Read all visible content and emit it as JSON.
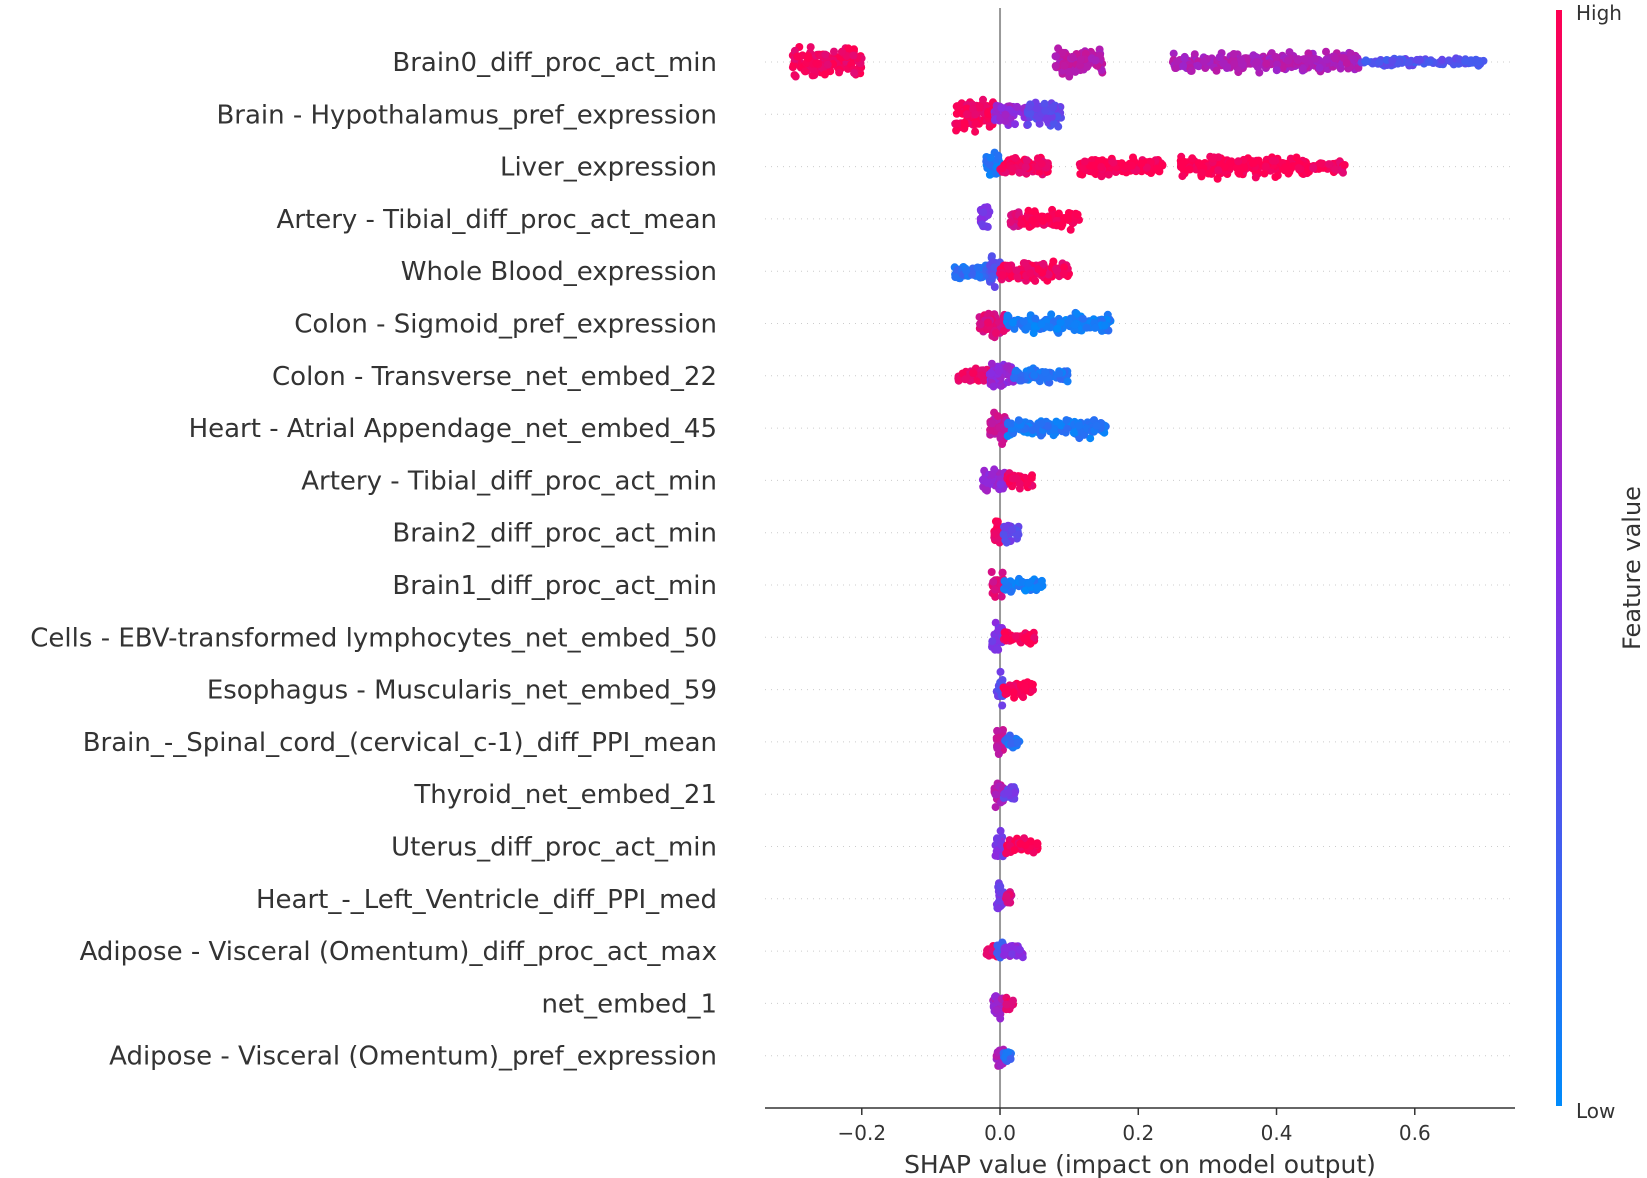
{
  "chart_data": {
    "type": "scatter",
    "subtype": "shap-beeswarm",
    "xlabel": "SHAP value (impact on model output)",
    "xlim": [
      -0.34,
      0.745
    ],
    "xticks": [
      {
        "value": -0.2,
        "label": "−0.2"
      },
      {
        "value": 0.0,
        "label": "0.0"
      },
      {
        "value": 0.2,
        "label": "0.2"
      },
      {
        "value": 0.4,
        "label": "0.4"
      },
      {
        "value": 0.6,
        "label": "0.6"
      }
    ],
    "zero_line": true,
    "colorbar": {
      "title": "Feature value",
      "high_label": "High",
      "low_label": "Low",
      "high_color": "#ff0052",
      "mid_color": "#8a2be2",
      "low_color": "#008bfb"
    },
    "features": [
      {
        "name": "Brain0_diff_proc_act_min",
        "clusters": [
          [
            -0.3,
            -0.2,
            0.95,
            1.0
          ],
          [
            0.08,
            0.15,
            0.7,
            0.8
          ],
          [
            0.25,
            0.52,
            0.65,
            0.55
          ],
          [
            0.52,
            0.7,
            0.3,
            0.12
          ]
        ]
      },
      {
        "name": "Brain - Hypothalamus_pref_expression",
        "clusters": [
          [
            -0.065,
            -0.01,
            0.95,
            1.0
          ],
          [
            -0.01,
            0.04,
            0.55,
            0.6
          ],
          [
            0.04,
            0.09,
            0.35,
            0.7
          ]
        ]
      },
      {
        "name": "Liver_expression",
        "clusters": [
          [
            -0.02,
            0.0,
            0.1,
            0.8
          ],
          [
            0.0,
            0.07,
            0.95,
            0.6
          ],
          [
            0.115,
            0.235,
            1.0,
            0.6
          ],
          [
            0.26,
            0.45,
            1.0,
            0.6
          ],
          [
            0.45,
            0.5,
            0.95,
            0.25
          ]
        ]
      },
      {
        "name": "Artery - Tibial_diff_proc_act_mean",
        "clusters": [
          [
            -0.03,
            -0.015,
            0.45,
            0.8
          ],
          [
            0.015,
            0.03,
            0.85,
            0.7
          ],
          [
            0.03,
            0.115,
            0.98,
            0.5
          ]
        ]
      },
      {
        "name": "Whole Blood_expression",
        "clusters": [
          [
            -0.068,
            -0.01,
            0.15,
            0.45
          ],
          [
            -0.015,
            0.0,
            0.3,
            0.95
          ],
          [
            0.0,
            0.1,
            0.95,
            0.55
          ]
        ]
      },
      {
        "name": "Colon - Sigmoid_pref_expression",
        "clusters": [
          [
            -0.03,
            0.01,
            0.85,
            0.95
          ],
          [
            0.01,
            0.16,
            0.08,
            0.55
          ]
        ]
      },
      {
        "name": "Colon - Transverse_net_embed_22",
        "clusters": [
          [
            -0.065,
            -0.015,
            0.9,
            0.4
          ],
          [
            -0.015,
            0.02,
            0.55,
            1.0
          ],
          [
            0.02,
            0.1,
            0.12,
            0.35
          ]
        ]
      },
      {
        "name": "Heart - Atrial Appendage_net_embed_45",
        "clusters": [
          [
            -0.015,
            0.01,
            0.75,
            1.0
          ],
          [
            0.01,
            0.155,
            0.1,
            0.5
          ]
        ]
      },
      {
        "name": "Artery - Tibial_diff_proc_act_min",
        "clusters": [
          [
            -0.025,
            0.01,
            0.55,
            0.9
          ],
          [
            0.01,
            0.048,
            0.95,
            0.5
          ]
        ]
      },
      {
        "name": "Brain2_diff_proc_act_min",
        "clusters": [
          [
            -0.01,
            0.005,
            0.95,
            1.0
          ],
          [
            0.005,
            0.027,
            0.35,
            0.6
          ]
        ]
      },
      {
        "name": "Brain1_diff_proc_act_min",
        "clusters": [
          [
            -0.012,
            0.005,
            0.85,
            0.95
          ],
          [
            0.005,
            0.062,
            0.08,
            0.35
          ]
        ]
      },
      {
        "name": "Cells - EBV-transformed lymphocytes_net_embed_50",
        "clusters": [
          [
            -0.012,
            0.005,
            0.45,
            0.95
          ],
          [
            0.005,
            0.05,
            0.97,
            0.4
          ]
        ]
      },
      {
        "name": "Esophagus - Muscularis_net_embed_59",
        "clusters": [
          [
            -0.005,
            0.005,
            0.35,
            0.95
          ],
          [
            0.005,
            0.048,
            0.97,
            0.4
          ]
        ]
      },
      {
        "name": "Brain_-_Spinal_cord_(cervical_c-1)_diff_PPI_mean",
        "clusters": [
          [
            -0.005,
            0.005,
            0.75,
            0.95
          ],
          [
            0.005,
            0.028,
            0.15,
            0.3
          ]
        ]
      },
      {
        "name": "Thyroid_net_embed_21",
        "clusters": [
          [
            -0.01,
            0.005,
            0.7,
            0.9
          ],
          [
            0.005,
            0.022,
            0.4,
            0.5
          ]
        ]
      },
      {
        "name": "Uterus_diff_proc_act_min",
        "clusters": [
          [
            -0.008,
            0.005,
            0.45,
            0.9
          ],
          [
            0.005,
            0.055,
            0.97,
            0.45
          ]
        ]
      },
      {
        "name": "Heart_-_Left_Ventricle_diff_PPI_med",
        "clusters": [
          [
            -0.005,
            0.008,
            0.4,
            0.95
          ],
          [
            0.008,
            0.018,
            0.85,
            0.4
          ]
        ]
      },
      {
        "name": "Adipose - Visceral (Omentum)_diff_proc_act_max",
        "clusters": [
          [
            -0.022,
            0.005,
            0.9,
            0.4
          ],
          [
            -0.005,
            0.005,
            0.25,
            0.95
          ],
          [
            0.005,
            0.033,
            0.5,
            0.45
          ]
        ]
      },
      {
        "name": "net_embed_1",
        "clusters": [
          [
            -0.01,
            0.008,
            0.6,
            0.9
          ],
          [
            0.008,
            0.02,
            0.9,
            0.35
          ]
        ]
      },
      {
        "name": "Adipose - Visceral (Omentum)_pref_expression",
        "clusters": [
          [
            -0.005,
            0.005,
            0.65,
            0.95
          ],
          [
            0.005,
            0.018,
            0.15,
            0.3
          ]
        ]
      }
    ]
  }
}
